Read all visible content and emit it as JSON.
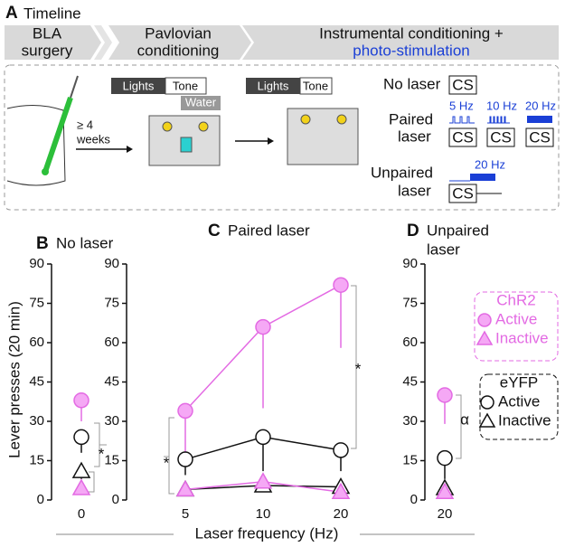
{
  "panel_a": {
    "letter": "A",
    "title": "Timeline",
    "stages": [
      [
        "BLA",
        "surgery"
      ],
      [
        "Pavlovian",
        "conditioning"
      ],
      [
        "Instrumental conditioning +",
        "photo-stimulation"
      ]
    ],
    "delay": [
      "≥ 4",
      "weeks"
    ],
    "pavlovian_box": [
      "Lights",
      "Tone",
      "Water"
    ],
    "instrumental_box": [
      "Lights",
      "Tone"
    ],
    "conditions": {
      "no_laser": "No laser",
      "paired": [
        "Paired",
        "laser"
      ],
      "unpaired": [
        "Unpaired",
        "laser"
      ],
      "cs": "CS",
      "frequencies": [
        "5 Hz",
        "10 Hz",
        "20 Hz"
      ],
      "unpaired_frequency": "20 Hz"
    }
  },
  "chart_data": [
    {
      "type": "line",
      "panel": "B",
      "title": [
        "No laser"
      ],
      "ylabel": "Lever presses (20 min)",
      "categories": [
        "0"
      ],
      "ylim": [
        0,
        90
      ],
      "yticks": [
        0,
        15,
        30,
        45,
        60,
        75,
        90
      ],
      "series": [
        {
          "name": "Active",
          "group": "ChR2",
          "marker": "circle",
          "color": "#e36ae3",
          "values": [
            38
          ],
          "errors": [
            8
          ]
        },
        {
          "name": "Inactive",
          "group": "ChR2",
          "marker": "triangle",
          "color": "#e36ae3",
          "values": [
            4.5
          ],
          "errors": [
            1
          ]
        },
        {
          "name": "Active",
          "group": "eYFP",
          "marker": "circle",
          "color": "#111111",
          "values": [
            24
          ],
          "errors": [
            6
          ]
        },
        {
          "name": "Inactive",
          "group": "eYFP",
          "marker": "triangle",
          "color": "#111111",
          "values": [
            11
          ],
          "errors": [
            3
          ]
        }
      ],
      "annotations": [
        "*"
      ]
    },
    {
      "type": "line",
      "panel": "C",
      "title": [
        "Paired laser"
      ],
      "xlabel": "Laser frequency (Hz)",
      "categories": [
        "5",
        "10",
        "20"
      ],
      "ylim": [
        0,
        90
      ],
      "yticks": [
        0,
        15,
        30,
        45,
        60,
        75,
        90
      ],
      "series": [
        {
          "name": "Active",
          "group": "ChR2",
          "marker": "circle",
          "color": "#e36ae3",
          "values": [
            34,
            66,
            82
          ],
          "errors": [
            16,
            31,
            24
          ]
        },
        {
          "name": "Inactive",
          "group": "ChR2",
          "marker": "triangle",
          "color": "#e36ae3",
          "values": [
            4,
            7,
            3
          ],
          "errors": [
            1,
            2,
            1
          ]
        },
        {
          "name": "Active",
          "group": "eYFP",
          "marker": "circle",
          "color": "#111111",
          "values": [
            15.5,
            24,
            19
          ],
          "errors": [
            6,
            13,
            8
          ]
        },
        {
          "name": "Inactive",
          "group": "eYFP",
          "marker": "triangle",
          "color": "#111111",
          "values": [
            4,
            5.5,
            5
          ],
          "errors": [
            1,
            2,
            1
          ]
        }
      ],
      "annotations": [
        "*",
        "*"
      ]
    },
    {
      "type": "line",
      "panel": "D",
      "title": [
        "Unpaired",
        "laser"
      ],
      "categories": [
        "20"
      ],
      "ylim": [
        0,
        90
      ],
      "yticks": [
        0,
        15,
        30,
        45,
        60,
        75,
        90
      ],
      "series": [
        {
          "name": "Active",
          "group": "ChR2",
          "marker": "circle",
          "color": "#e36ae3",
          "values": [
            40
          ],
          "errors": [
            11
          ]
        },
        {
          "name": "Inactive",
          "group": "ChR2",
          "marker": "triangle",
          "color": "#e36ae3",
          "values": [
            3
          ],
          "errors": [
            1
          ]
        },
        {
          "name": "Active",
          "group": "eYFP",
          "marker": "circle",
          "color": "#111111",
          "values": [
            16
          ],
          "errors": [
            8
          ]
        },
        {
          "name": "Inactive",
          "group": "eYFP",
          "marker": "triangle",
          "color": "#111111",
          "values": [
            4.5
          ],
          "errors": [
            1
          ]
        }
      ],
      "annotations": [
        "α"
      ]
    }
  ]
}
